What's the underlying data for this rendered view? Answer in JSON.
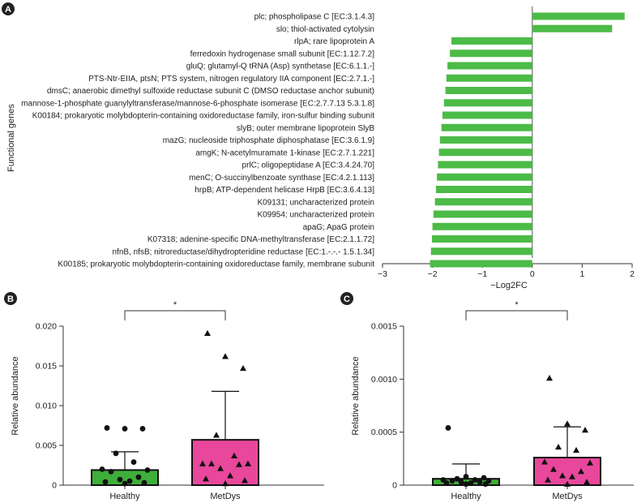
{
  "panels": [
    "A",
    "B",
    "C"
  ],
  "chart_data": [
    {
      "type": "bar",
      "orientation": "horizontal",
      "panel": "A",
      "title": "",
      "xlabel": "−Log2FC",
      "ylabel": "Functional genes",
      "xlim": [
        -3,
        2
      ],
      "xticks": [
        "−3",
        "−2",
        "−1",
        "0",
        "1",
        "2"
      ],
      "xtick_values": [
        -3,
        -2,
        -1,
        0,
        1,
        2
      ],
      "bar_color": "#4cbb47",
      "categories": [
        "plc; phospholipase C [EC:3.1.4.3]",
        "slo; thiol-activated cytolysin",
        "rlpA; rare lipoprotein A",
        "ferredoxin hydrogenase small subunit [EC:1.12.7.2]",
        "gluQ; glutamyl-Q tRNA (Asp) synthetase [EC:6.1.1.-]",
        "PTS-Ntr-EIIA, ptsN; PTS system, nitrogen regulatory IIA component [EC:2.7.1.-]",
        "dmsC; anaerobic dimethyl sulfoxide reductase subunit C (DMSO reductase anchor subunit)",
        "mannose-1-phosphate guanylyltransferase/mannose-6-phosphate isomerase [EC:2.7.7.13 5.3.1.8]",
        "K00184; prokaryotic molybdopterin-containing oxidoreductase family, iron-sulfur binding subunit",
        "slyB; outer membrane lipoprotein SlyB",
        "mazG; nucleoside triphosphate diphosphatase [EC:3.6.1.9]",
        "amgK; N-acetylmuramate 1-kinase [EC:2.7.1.221]",
        "prlC; oligopeptidase A [EC:3.4.24.70]",
        "menC; O-succinylbenzoate synthase [EC:4.2.1.113]",
        "hrpB; ATP-dependent helicase HrpB [EC:3.6.4.13]",
        "K09131; uncharacterized protein",
        "K09954; uncharacterized protein",
        "apaG; ApaG protein",
        "K07318; adenine-specific DNA-methyltransferase [EC:2.1.1.72]",
        "nfnB, nfsB; nitroreductase/dihydropteridine reductase [EC:1.-.-.- 1.5.1.34]",
        "K00185; prokaryotic molybdopterin-containing oxidoreductase family, membrane subunit"
      ],
      "values": [
        1.85,
        1.6,
        -1.62,
        -1.65,
        -1.7,
        -1.72,
        -1.74,
        -1.77,
        -1.8,
        -1.82,
        -1.85,
        -1.87,
        -1.89,
        -1.91,
        -1.93,
        -1.95,
        -1.98,
        -2.0,
        -2.01,
        -2.03,
        -2.05
      ]
    },
    {
      "type": "bar",
      "panel": "B",
      "title": "",
      "xlabel": "",
      "ylabel": "Relative abundance",
      "ylim": [
        0,
        0.02
      ],
      "yticks": [
        "0",
        "0.005",
        "0.010",
        "0.015",
        "0.020"
      ],
      "ytick_values": [
        0,
        0.005,
        0.01,
        0.015,
        0.02
      ],
      "categories": [
        "Healthy",
        "MetDys"
      ],
      "bar_colors": [
        "#3fae3a",
        "#e8479b"
      ],
      "means": [
        0.0019,
        0.0057
      ],
      "error_upper": [
        0.0042,
        0.0118
      ],
      "significance": "*",
      "points": [
        {
          "group": "Healthy",
          "marker": "circle",
          "values": [
            0.0072,
            0.0071,
            0.0071,
            0.004,
            0.0029,
            0.002,
            0.0019,
            0.0017,
            0.001,
            0.0007,
            0.0005,
            0.0004,
            0.0003,
            0.0002
          ]
        },
        {
          "group": "MetDys",
          "marker": "triangle",
          "values": [
            0.0191,
            0.0162,
            0.0147,
            0.0063,
            0.0037,
            0.0027,
            0.0027,
            0.0027,
            0.0026,
            0.0021,
            0.0012,
            0.0008,
            0.0006,
            0.0002
          ]
        }
      ]
    },
    {
      "type": "bar",
      "panel": "C",
      "title": "",
      "xlabel": "",
      "ylabel": "Relative abundance",
      "ylim": [
        0,
        0.0015
      ],
      "yticks": [
        "0",
        "0.0005",
        "0.0010",
        "0.0015"
      ],
      "ytick_values": [
        0,
        0.0005,
        0.001,
        0.0015
      ],
      "categories": [
        "Healthy",
        "MetDys"
      ],
      "bar_colors": [
        "#3fae3a",
        "#e8479b"
      ],
      "means": [
        6e-05,
        0.00026
      ],
      "error_upper": [
        0.0002,
        0.00055
      ],
      "significance": "*",
      "points": [
        {
          "group": "Healthy",
          "marker": "circle",
          "values": [
            0.00054,
            8e-05,
            7e-05,
            6e-05,
            5e-05,
            5e-05,
            4e-05,
            4e-05,
            3e-05,
            3e-05,
            2e-05,
            2e-05,
            1e-05,
            1e-05
          ]
        },
        {
          "group": "MetDys",
          "marker": "triangle",
          "values": [
            0.00101,
            0.00058,
            0.00052,
            0.00036,
            0.00033,
            0.00022,
            0.00021,
            0.00015,
            0.00013,
            9e-05,
            8e-05,
            5e-05,
            3e-05,
            1e-05
          ]
        }
      ]
    }
  ]
}
